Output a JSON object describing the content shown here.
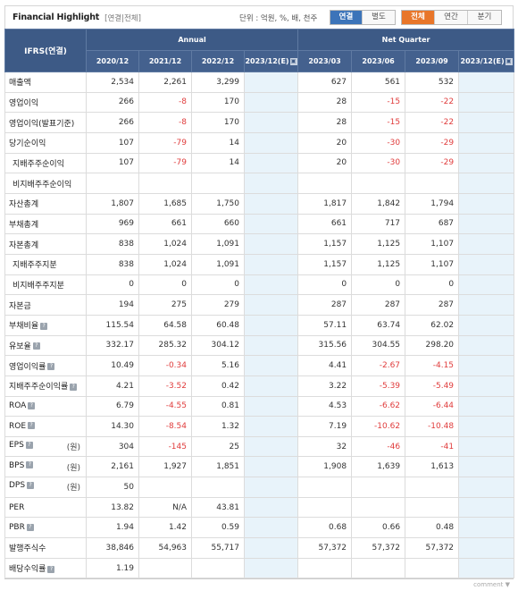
{
  "header": {
    "title": "Financial Highlight",
    "subtitle": "[연결|전체]",
    "unit": "단위 : 억원, %, 배, 천주"
  },
  "toggle_consol": [
    "연결",
    "별도"
  ],
  "toggle_period": [
    "전체",
    "연간",
    "분기"
  ],
  "table": {
    "corner": "IFRS(연결)",
    "groups": [
      "Annual",
      "Net Quarter"
    ],
    "columns": [
      "2020/12",
      "2021/12",
      "2022/12",
      "2023/12(E)",
      "2023/03",
      "2023/06",
      "2023/09",
      "2023/12(E)"
    ],
    "rows": [
      {
        "label": "매출액",
        "values": [
          "2,534",
          "2,261",
          "3,299",
          "",
          "627",
          "561",
          "532",
          ""
        ]
      },
      {
        "label": "영업이익",
        "values": [
          "266",
          "-8",
          "170",
          "",
          "28",
          "-15",
          "-22",
          ""
        ]
      },
      {
        "label": "영업이익(발표기준)",
        "values": [
          "266",
          "-8",
          "170",
          "",
          "28",
          "-15",
          "-22",
          ""
        ]
      },
      {
        "label": "당기순이익",
        "values": [
          "107",
          "-79",
          "14",
          "",
          "20",
          "-30",
          "-29",
          ""
        ]
      },
      {
        "label": "지배주주순이익",
        "values": [
          "107",
          "-79",
          "14",
          "",
          "20",
          "-30",
          "-29",
          ""
        ]
      },
      {
        "label": "비지배주주순이익",
        "values": [
          "",
          "",
          "",
          "",
          "",
          "",
          "",
          ""
        ]
      },
      {
        "label": "자산총계",
        "values": [
          "1,807",
          "1,685",
          "1,750",
          "",
          "1,817",
          "1,842",
          "1,794",
          ""
        ]
      },
      {
        "label": "부채총계",
        "values": [
          "969",
          "661",
          "660",
          "",
          "661",
          "717",
          "687",
          ""
        ]
      },
      {
        "label": "자본총계",
        "values": [
          "838",
          "1,024",
          "1,091",
          "",
          "1,157",
          "1,125",
          "1,107",
          ""
        ]
      },
      {
        "label": "지배주주지분",
        "values": [
          "838",
          "1,024",
          "1,091",
          "",
          "1,157",
          "1,125",
          "1,107",
          ""
        ]
      },
      {
        "label": "비지배주주지분",
        "values": [
          "0",
          "0",
          "0",
          "",
          "0",
          "0",
          "0",
          ""
        ]
      },
      {
        "label": "자본금",
        "values": [
          "194",
          "275",
          "279",
          "",
          "287",
          "287",
          "287",
          ""
        ]
      },
      {
        "label": "부채비율",
        "values": [
          "115.54",
          "64.58",
          "60.48",
          "",
          "57.11",
          "63.74",
          "62.02",
          ""
        ]
      },
      {
        "label": "유보율",
        "values": [
          "332.17",
          "285.32",
          "304.12",
          "",
          "315.56",
          "304.55",
          "298.20",
          ""
        ]
      },
      {
        "label": "영업이익률",
        "values": [
          "10.49",
          "-0.34",
          "5.16",
          "",
          "4.41",
          "-2.67",
          "-4.15",
          ""
        ]
      },
      {
        "label": "지배주주순이익률",
        "values": [
          "4.21",
          "-3.52",
          "0.42",
          "",
          "3.22",
          "-5.39",
          "-5.49",
          ""
        ]
      },
      {
        "label": "ROA",
        "values": [
          "6.79",
          "-4.55",
          "0.81",
          "",
          "4.53",
          "-6.62",
          "-6.44",
          ""
        ]
      },
      {
        "label": "ROE",
        "values": [
          "14.30",
          "-8.54",
          "1.32",
          "",
          "7.19",
          "-10.62",
          "-10.48",
          ""
        ]
      },
      {
        "label": "EPS",
        "unit": "(원)",
        "values": [
          "304",
          "-145",
          "25",
          "",
          "32",
          "-46",
          "-41",
          ""
        ]
      },
      {
        "label": "BPS",
        "unit": "(원)",
        "values": [
          "2,161",
          "1,927",
          "1,851",
          "",
          "1,908",
          "1,639",
          "1,613",
          ""
        ]
      },
      {
        "label": "DPS",
        "unit": "(원)",
        "values": [
          "50",
          "",
          "",
          "",
          "",
          "",
          "",
          ""
        ]
      },
      {
        "label": "PER",
        "values": [
          "13.82",
          "N/A",
          "43.81",
          "",
          "",
          "",
          "",
          ""
        ]
      },
      {
        "label": "PBR",
        "values": [
          "1.94",
          "1.42",
          "0.59",
          "",
          "0.68",
          "0.66",
          "0.48",
          ""
        ]
      },
      {
        "label": "발행주식수",
        "values": [
          "38,846",
          "54,963",
          "55,717",
          "",
          "57,372",
          "57,372",
          "57,372",
          ""
        ]
      },
      {
        "label": "배당수익률",
        "values": [
          "1.19",
          "",
          "",
          "",
          "",
          "",
          "",
          ""
        ]
      }
    ]
  },
  "footer": {
    "more": "comment ▼"
  }
}
